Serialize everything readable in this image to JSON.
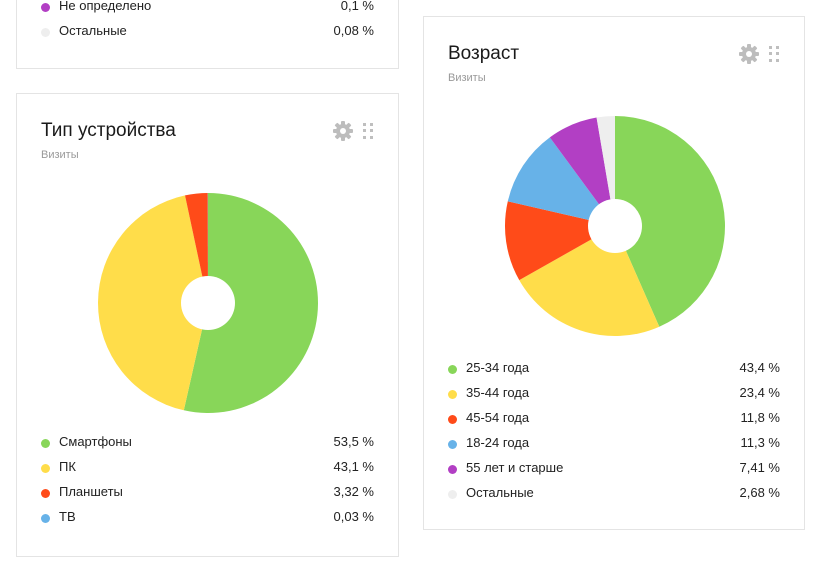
{
  "top_card": {
    "rows": [
      {
        "label": "Не определено",
        "value": "0,1 %",
        "color": "#b23fc4"
      },
      {
        "label": "Остальные",
        "value": "0,08 %",
        "color": "#eeeeee"
      }
    ]
  },
  "cards": {
    "device": {
      "title": "Тип устройства",
      "subtitle": "Визиты"
    },
    "age": {
      "title": "Возраст",
      "subtitle": "Визиты"
    }
  },
  "chart_data": [
    {
      "type": "pie",
      "title": "Тип устройства",
      "subtitle": "Визиты",
      "categories": [
        "Смартфоны",
        "ПК",
        "Планшеты",
        "ТВ"
      ],
      "values": [
        53.5,
        43.1,
        3.32,
        0.03
      ],
      "value_labels": [
        "53,5 %",
        "43,1 %",
        "3,32 %",
        "0,03 %"
      ],
      "colors": [
        "#88d659",
        "#ffdd4a",
        "#ff4b19",
        "#67b2e8"
      ]
    },
    {
      "type": "pie",
      "title": "Возраст",
      "subtitle": "Визиты",
      "categories": [
        "25-34 года",
        "35-44 года",
        "45-54 года",
        "18-24 года",
        "55 лет и старше",
        "Остальные"
      ],
      "values": [
        43.4,
        23.4,
        11.8,
        11.3,
        7.41,
        2.68
      ],
      "value_labels": [
        "43,4 %",
        "23,4 %",
        "11,8 %",
        "11,3 %",
        "7,41 %",
        "2,68 %"
      ],
      "colors": [
        "#88d659",
        "#ffdd4a",
        "#ff4b19",
        "#67b2e8",
        "#b23fc4",
        "#eeeeee"
      ]
    }
  ]
}
